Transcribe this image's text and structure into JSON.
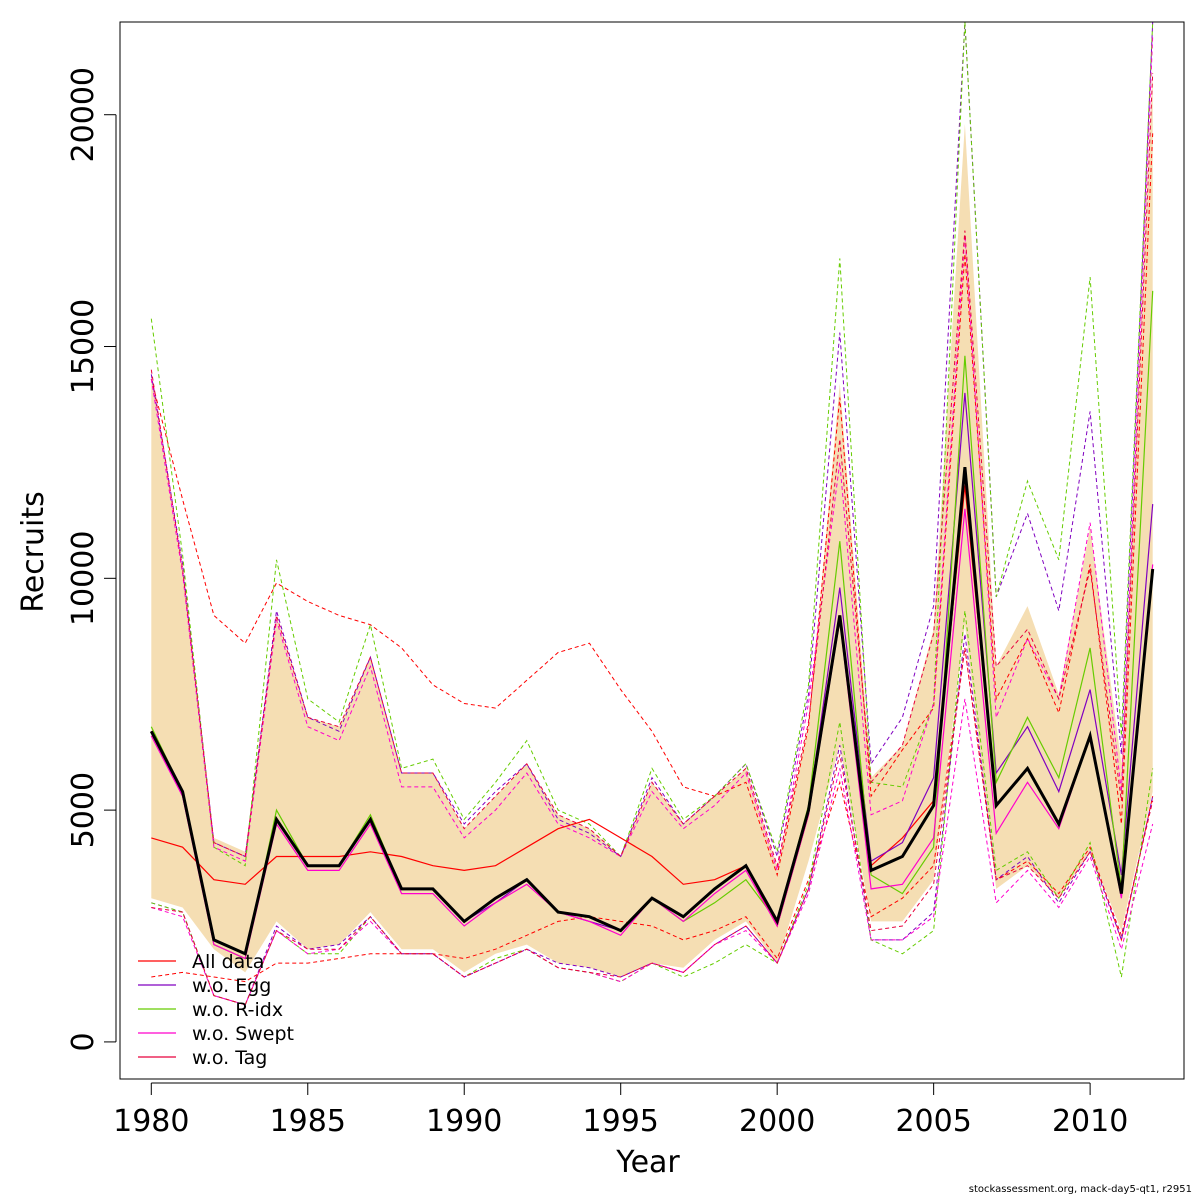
{
  "chart_data": {
    "type": "line",
    "xlabel": "Year",
    "ylabel": "Recruits",
    "xlim": [
      1979,
      2013
    ],
    "ylim": [
      -800,
      22000
    ],
    "x_ticks": [
      1980,
      1985,
      1990,
      1995,
      2000,
      2005,
      2010
    ],
    "y_ticks": [
      0,
      5000,
      10000,
      15000,
      20000
    ],
    "x_tick_labels": [
      "1980",
      "1985",
      "1990",
      "1995",
      "2000",
      "2005",
      "2010"
    ],
    "y_tick_labels": [
      "0",
      "5000",
      "10000",
      "15000",
      "20000"
    ],
    "legend_position": "bottom-left",
    "band_color": "#F5DEB3",
    "years": [
      1980,
      1981,
      1982,
      1983,
      1984,
      1985,
      1986,
      1987,
      1988,
      1989,
      1990,
      1991,
      1992,
      1993,
      1994,
      1995,
      1996,
      1997,
      1998,
      1999,
      2000,
      2001,
      2002,
      2003,
      2004,
      2005,
      2006,
      2007,
      2008,
      2009,
      2010,
      2011,
      2012
    ],
    "confidence_band": {
      "lower": [
        3100,
        2900,
        2000,
        1500,
        2600,
        2000,
        2100,
        2800,
        2000,
        2000,
        1500,
        1900,
        2100,
        1700,
        1600,
        1400,
        1700,
        1600,
        2200,
        2600,
        1700,
        3900,
        6400,
        2600,
        2600,
        3500,
        9000,
        3300,
        3800,
        3100,
        4100,
        2400,
        5400
      ],
      "upper": [
        14400,
        10200,
        4400,
        4100,
        9200,
        7000,
        6800,
        8300,
        5800,
        5800,
        4600,
        5300,
        6000,
        4900,
        4600,
        4000,
        5600,
        4700,
        5300,
        5900,
        3800,
        6800,
        14200,
        5700,
        6400,
        8900,
        19800,
        8100,
        9400,
        7500,
        11100,
        6000,
        21000
      ]
    },
    "series": [
      {
        "name": "All data",
        "color": "#FF0000",
        "values": [
          4400,
          4200,
          3500,
          3400,
          4000,
          4000,
          4000,
          4100,
          4000,
          3800,
          3700,
          3800,
          4200,
          4600,
          4800,
          4400,
          4000,
          3400,
          3500,
          3800,
          2500,
          4900,
          9200,
          3800,
          4400,
          5200,
          12000,
          5100,
          5900,
          4700,
          6600,
          3200,
          10200
        ],
        "lower": [
          1400,
          1500,
          1400,
          1300,
          1700,
          1700,
          1800,
          1900,
          1900,
          1900,
          1800,
          2000,
          2300,
          2600,
          2700,
          2600,
          2500,
          2200,
          2400,
          2700,
          1800,
          3500,
          5600,
          2700,
          3100,
          3800,
          8500,
          3500,
          3900,
          3200,
          4200,
          2200,
          5300
        ],
        "upper": [
          14300,
          11700,
          9200,
          8600,
          9900,
          9500,
          9200,
          9000,
          8500,
          7700,
          7300,
          7200,
          7800,
          8400,
          8600,
          7600,
          6700,
          5500,
          5300,
          5600,
          3600,
          6800,
          13900,
          5300,
          6300,
          7200,
          17000,
          7400,
          8700,
          7100,
          10300,
          4700,
          19600
        ]
      },
      {
        "name": "w.o. Egg",
        "color": "#8000C0",
        "values": [
          6700,
          5300,
          2200,
          1900,
          4800,
          3800,
          3800,
          4800,
          3300,
          3300,
          2600,
          3000,
          3500,
          2800,
          2600,
          2400,
          3100,
          2700,
          3300,
          3800,
          2600,
          5000,
          9800,
          3900,
          4300,
          5700,
          14000,
          5800,
          6800,
          5400,
          7600,
          3600,
          11600
        ],
        "lower": [
          3000,
          2800,
          1000,
          800,
          2500,
          2000,
          2100,
          2700,
          1900,
          1900,
          1400,
          1700,
          2000,
          1700,
          1600,
          1400,
          1700,
          1500,
          2100,
          2500,
          1700,
          3300,
          6400,
          2200,
          2200,
          2800,
          8800,
          3500,
          4000,
          3000,
          4100,
          2200,
          5300
        ],
        "upper": [
          14400,
          10300,
          4300,
          4000,
          9300,
          7000,
          6700,
          8300,
          5800,
          5800,
          4700,
          5400,
          6000,
          4800,
          4500,
          4000,
          5700,
          4700,
          5300,
          6000,
          4000,
          7500,
          15300,
          6000,
          7000,
          9400,
          22500,
          9600,
          11400,
          9300,
          13600,
          6200,
          22500
        ]
      },
      {
        "name": "w.o. R-idx",
        "color": "#66CC00",
        "values": [
          6800,
          5400,
          2100,
          1800,
          5000,
          3800,
          3800,
          4900,
          3300,
          3300,
          2600,
          3100,
          3500,
          2800,
          2700,
          2400,
          3100,
          2600,
          3000,
          3500,
          2600,
          5100,
          10800,
          3600,
          3200,
          4200,
          14800,
          5600,
          7000,
          5700,
          8500,
          3300,
          16200
        ],
        "lower": [
          3000,
          2800,
          1000,
          800,
          2400,
          1900,
          1900,
          2700,
          1900,
          1900,
          1400,
          1800,
          2000,
          1600,
          1500,
          1300,
          1700,
          1400,
          1700,
          2100,
          1700,
          3400,
          6900,
          2200,
          1900,
          2400,
          9300,
          3700,
          4100,
          3100,
          4300,
          1400,
          5900
        ],
        "upper": [
          15600,
          10500,
          4200,
          3800,
          10400,
          7400,
          6900,
          9000,
          5900,
          6100,
          4800,
          5600,
          6500,
          5000,
          4700,
          4000,
          5900,
          4800,
          5300,
          6000,
          4100,
          7700,
          16900,
          5600,
          5500,
          7300,
          22500,
          9600,
          12100,
          10400,
          16500,
          6600,
          22500
        ]
      },
      {
        "name": "w.o. Swept",
        "color": "#FF00CC",
        "values": [
          6600,
          5300,
          2100,
          1800,
          4700,
          3700,
          3700,
          4700,
          3200,
          3200,
          2500,
          3000,
          3400,
          2800,
          2600,
          2300,
          3100,
          2600,
          3200,
          3700,
          2500,
          4900,
          9100,
          3300,
          3400,
          4400,
          11500,
          4500,
          5600,
          4600,
          6600,
          3100,
          10300
        ],
        "lower": [
          2900,
          2700,
          1000,
          800,
          2400,
          1900,
          2000,
          2600,
          1900,
          1900,
          1400,
          1700,
          2000,
          1600,
          1500,
          1300,
          1700,
          1500,
          2100,
          2400,
          1700,
          3200,
          5900,
          2200,
          2200,
          2700,
          7400,
          3000,
          3700,
          2900,
          4000,
          2000,
          4700
        ],
        "upper": [
          14300,
          10100,
          4200,
          3900,
          9100,
          6800,
          6500,
          8100,
          5500,
          5500,
          4400,
          5000,
          5800,
          4700,
          4400,
          4000,
          5400,
          4600,
          5100,
          5800,
          3700,
          7300,
          12500,
          4900,
          5200,
          7300,
          17400,
          7000,
          8700,
          7400,
          11200,
          5400,
          21700
        ]
      },
      {
        "name": "w.o. Tag",
        "color": "#E8003C",
        "values": [
          6700,
          5400,
          2200,
          1900,
          4800,
          3800,
          3800,
          4800,
          3300,
          3300,
          2600,
          3100,
          3500,
          2800,
          2700,
          2400,
          3100,
          2700,
          3300,
          3800,
          2600,
          5000,
          9100,
          3700,
          4000,
          5100,
          12200,
          5100,
          5900,
          4700,
          6600,
          3200,
          10200
        ],
        "lower": [
          2900,
          2800,
          1000,
          800,
          2400,
          2000,
          2000,
          2700,
          1900,
          1900,
          1400,
          1700,
          2000,
          1600,
          1500,
          1400,
          1700,
          1500,
          2100,
          2500,
          1700,
          3300,
          6200,
          2400,
          2500,
          3400,
          8500,
          3500,
          3800,
          3100,
          4100,
          2300,
          5200
        ],
        "upper": [
          14500,
          10200,
          4300,
          4000,
          9200,
          7000,
          6800,
          8300,
          5800,
          5800,
          4600,
          5300,
          6000,
          4900,
          4600,
          4000,
          5600,
          4700,
          5300,
          5900,
          3800,
          6900,
          13000,
          5600,
          6400,
          8800,
          17500,
          8100,
          8900,
          7400,
          10200,
          5200,
          20900
        ]
      }
    ],
    "main_line": {
      "color": "#000000",
      "values": [
        6700,
        5400,
        2200,
        1900,
        4800,
        3800,
        3800,
        4800,
        3300,
        3300,
        2600,
        3100,
        3500,
        2800,
        2700,
        2400,
        3100,
        2700,
        3300,
        3800,
        2600,
        5000,
        9200,
        3700,
        4000,
        5100,
        12400,
        5100,
        5900,
        4700,
        6600,
        3200,
        10200
      ]
    }
  },
  "footer": "stockassessment.org, mack-day5-qt1, r2951"
}
